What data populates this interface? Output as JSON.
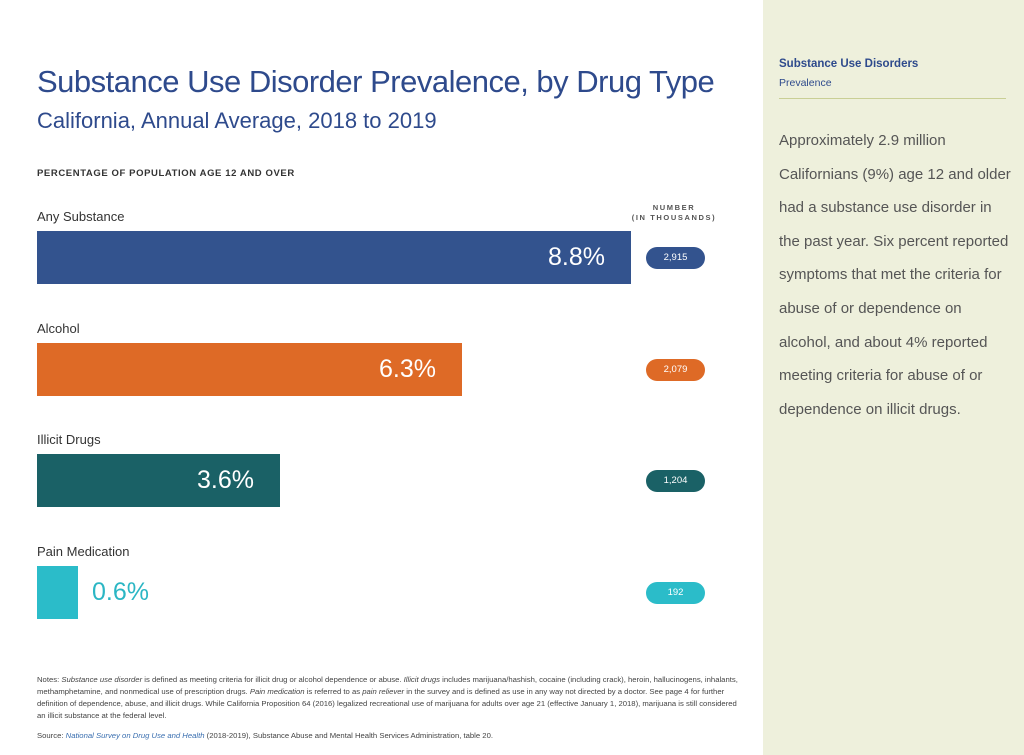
{
  "header": {
    "title": "Substance Use Disorder Prevalence, by Drug Type",
    "subtitle": "California, Annual Average, 2018 to 2019",
    "axis_label": "PERCENTAGE OF POPULATION AGE 12 AND OVER",
    "number_header_line1": "NUMBER",
    "number_header_line2": "(IN THOUSANDS)"
  },
  "chart_data": {
    "type": "bar",
    "orientation": "horizontal",
    "title": "Substance Use Disorder Prevalence, by Drug Type",
    "subtitle": "California, Annual Average, 2018 to 2019",
    "xlabel": "PERCENTAGE OF POPULATION AGE 12 AND OVER",
    "categories": [
      "Any Substance",
      "Alcohol",
      "Illicit Drugs",
      "Pain Medication"
    ],
    "values": [
      8.8,
      6.3,
      3.6,
      0.6
    ],
    "value_labels": [
      "8.8%",
      "6.3%",
      "3.6%",
      "0.6%"
    ],
    "counts_thousands": [
      "2,915",
      "2,079",
      "1,204",
      "192"
    ],
    "colors": [
      "#33538e",
      "#de6a26",
      "#1a6166",
      "#2bbcc9"
    ],
    "xlim": [
      0,
      8.8
    ],
    "grid": false,
    "legend": "none"
  },
  "notes": {
    "p1": "Notes: ",
    "t1": "Substance use disorder",
    "p2": " is defined as meeting criteria for illicit drug or alcohol dependence or abuse. ",
    "t2": "Illicit drugs",
    "p3": " includes marijuana/hashish, cocaine (including crack), heroin, hallucinogens, inhalants, methamphetamine, and nonmedical use of prescription drugs. ",
    "t3": "Pain medication",
    "p4": " is referred to as ",
    "t4": "pain reliever",
    "p5": " in the survey and is defined as use in any way not directed by a doctor. See page 4 for further definition of dependence, abuse, and illicit drugs. While California Proposition 64 (2016) legalized recreational use of marijuana for adults over age 21 (effective January 1, 2018), marijuana is still considered an illicit substance at the federal level."
  },
  "source": {
    "prefix": "Source: ",
    "link": "National Survey on Drug Use and Health",
    "suffix": " (2018-2019), Substance Abuse and Mental Health Services Administration, table 20."
  },
  "sidebar": {
    "section": "Substance Use Disorders",
    "subsection": "Prevalence",
    "body": "Approximately 2.9 million Californians (9%) age 12 and older had a substance use disorder in the past year. Six percent reported symptoms that met the criteria for abuse of or dependence on alcohol, and about 4% reported meeting criteria for abuse of or dependence on illicit drugs."
  }
}
